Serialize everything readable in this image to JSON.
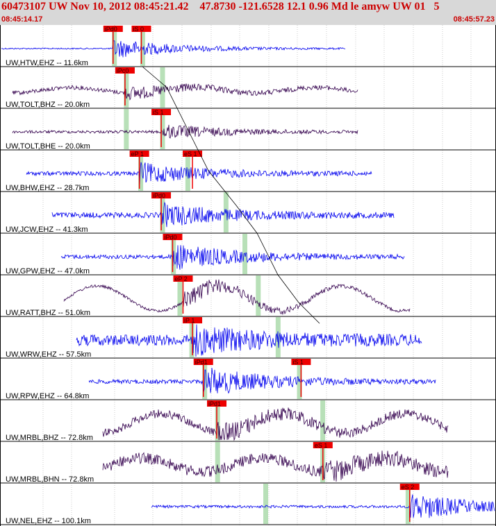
{
  "header": {
    "title": "60473107 UW Nov 10, 2012 08:45:21.42    47.8730 -121.6528 12.1 0.96 Md le amyw UW 01   5",
    "start_time": "08:45:14.17",
    "end_time": "08:45:57.23"
  },
  "colors": {
    "header_bg": "#d8d8d8",
    "header_text": "#cc0000",
    "trace_blue": "#0000ee",
    "trace_purple": "#33004d",
    "pick_red": "#ee0000",
    "window_green": "#b8e0b8"
  },
  "traces": [
    {
      "label": "UW,HTW,EHZ -- 11.6km",
      "color": "blue",
      "picks": [
        {
          "text": "iPd0",
          "t": 0.228
        },
        {
          "text": "iS 0",
          "t": 0.285
        }
      ],
      "greens": [
        0.23,
        0.287
      ]
    },
    {
      "label": "UW,TOLT,BHZ -- 20.0km",
      "color": "purple",
      "picks": [
        {
          "text": "iPc0",
          "t": 0.252
        }
      ],
      "greens": [
        0.254,
        0.327
      ]
    },
    {
      "label": "UW,TOLT,BHE -- 20.0km",
      "color": "purple",
      "picks": [
        {
          "text": "iS 1",
          "t": 0.325
        }
      ],
      "greens": [
        0.254,
        0.327
      ]
    },
    {
      "label": "UW,BHW,EHZ -- 28.7km",
      "color": "blue",
      "picks": [
        {
          "text": "eP 1",
          "t": 0.281
        },
        {
          "text": "eS 1",
          "t": 0.388
        }
      ],
      "greens": [
        0.283,
        0.378
      ]
    },
    {
      "label": "UW,JCW,EHZ -- 41.3km",
      "color": "blue",
      "picks": [
        {
          "text": "iPd0",
          "t": 0.325
        }
      ],
      "greens": [
        0.327,
        0.455
      ]
    },
    {
      "label": "UW,GPW,EHZ -- 47.0km",
      "color": "blue",
      "picks": [
        {
          "text": "iPd0",
          "t": 0.348
        }
      ],
      "greens": [
        0.349,
        0.493
      ]
    },
    {
      "label": "UW,RATT,BHZ -- 51.0km",
      "color": "purple",
      "picks": [
        {
          "text": "eP 2",
          "t": 0.369
        }
      ],
      "greens": [
        0.362,
        0.52
      ]
    },
    {
      "label": "UW,WRW,EHZ -- 57.5km",
      "color": "blue",
      "picks": [
        {
          "text": "iP 1",
          "t": 0.388
        }
      ],
      "greens": [
        0.386,
        0.56
      ]
    },
    {
      "label": "UW,RPW,EHZ -- 64.8km",
      "color": "blue",
      "picks": [
        {
          "text": "iPd1",
          "t": 0.41
        },
        {
          "text": "iS 1",
          "t": 0.607
        }
      ],
      "greens": [
        0.412,
        0.603
      ]
    },
    {
      "label": "UW,MRBL,BHZ -- 72.8km",
      "color": "purple",
      "picks": [
        {
          "text": "iPd1",
          "t": 0.437
        }
      ],
      "greens": [
        0.438,
        0.65
      ]
    },
    {
      "label": "UW,MRBL,BHN -- 72.8km",
      "color": "purple",
      "picks": [
        {
          "text": "eS 1",
          "t": 0.651
        }
      ],
      "greens": [
        0.438,
        0.65
      ]
    },
    {
      "label": "UW,NEL,EHZ -- 100.1km",
      "color": "blue",
      "picks": [
        {
          "text": "eS 2",
          "t": 0.826
        }
      ],
      "greens": [
        0.535,
        0.822
      ]
    }
  ]
}
